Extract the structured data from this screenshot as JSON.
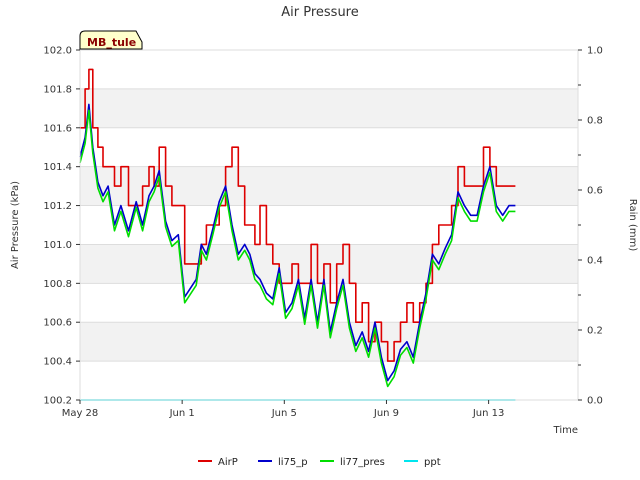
{
  "chart_data": {
    "type": "line",
    "title": "Air Pressure",
    "xlabel": "Time",
    "ylabel": "Air Pressure (kPa)",
    "y2label": "Rain (mm)",
    "site_badge": "MB_tule",
    "xlim": [
      0,
      19.5
    ],
    "ylim": [
      100.2,
      102.0
    ],
    "y2lim": [
      0.0,
      1.0
    ],
    "x_ticks": [
      {
        "x": 0,
        "label": "May 28"
      },
      {
        "x": 4,
        "label": "Jun 1"
      },
      {
        "x": 8,
        "label": "Jun 5"
      },
      {
        "x": 12,
        "label": "Jun 9"
      },
      {
        "x": 16,
        "label": "Jun 13"
      }
    ],
    "y_ticks": [
      "100.2",
      "100.4",
      "100.6",
      "100.8",
      "101.0",
      "101.2",
      "101.4",
      "101.6",
      "101.8",
      "102.0"
    ],
    "y2_ticks": [
      "0.0",
      "0.2",
      "0.4",
      "0.6",
      "0.8",
      "1.0"
    ],
    "grid": true,
    "legend_position": "bottom",
    "series": [
      {
        "name": "AirP",
        "color": "#dd0000",
        "axis": "left",
        "step": true,
        "x": [
          0.0,
          0.2,
          0.35,
          0.5,
          0.7,
          0.9,
          1.1,
          1.35,
          1.6,
          1.9,
          2.2,
          2.45,
          2.7,
          2.9,
          3.1,
          3.35,
          3.6,
          3.85,
          4.1,
          4.35,
          4.55,
          4.75,
          4.95,
          5.2,
          5.45,
          5.7,
          5.95,
          6.2,
          6.45,
          6.65,
          6.85,
          7.05,
          7.3,
          7.55,
          7.8,
          8.05,
          8.3,
          8.55,
          8.8,
          9.05,
          9.3,
          9.55,
          9.8,
          10.05,
          10.3,
          10.55,
          10.8,
          11.05,
          11.3,
          11.55,
          11.8,
          12.05,
          12.3,
          12.55,
          12.8,
          13.05,
          13.3,
          13.55,
          13.8,
          14.05,
          14.3,
          14.55,
          14.8,
          15.05,
          15.3,
          15.55,
          15.8,
          16.05,
          16.3,
          16.55,
          16.8,
          17.05
        ],
        "values": [
          101.6,
          101.8,
          101.9,
          101.6,
          101.5,
          101.4,
          101.4,
          101.3,
          101.4,
          101.2,
          101.2,
          101.3,
          101.4,
          101.3,
          101.5,
          101.3,
          101.2,
          101.2,
          100.9,
          100.9,
          100.9,
          101.0,
          101.1,
          101.1,
          101.2,
          101.4,
          101.5,
          101.3,
          101.1,
          101.1,
          101.0,
          101.2,
          101.0,
          100.9,
          100.8,
          100.8,
          100.9,
          100.8,
          100.8,
          101.0,
          100.8,
          100.9,
          100.7,
          100.9,
          101.0,
          100.8,
          100.6,
          100.7,
          100.5,
          100.6,
          100.5,
          100.4,
          100.5,
          100.6,
          100.7,
          100.6,
          100.7,
          100.8,
          101.0,
          101.1,
          101.1,
          101.2,
          101.4,
          101.3,
          101.3,
          101.3,
          101.5,
          101.4,
          101.3,
          101.3,
          101.3,
          101.3
        ]
      },
      {
        "name": "li75_p",
        "color": "#0000cc",
        "axis": "left",
        "step": false,
        "x": [
          0.0,
          0.2,
          0.35,
          0.5,
          0.7,
          0.9,
          1.1,
          1.35,
          1.6,
          1.9,
          2.2,
          2.45,
          2.7,
          2.9,
          3.1,
          3.35,
          3.6,
          3.85,
          4.1,
          4.35,
          4.55,
          4.75,
          4.95,
          5.2,
          5.45,
          5.7,
          5.95,
          6.2,
          6.45,
          6.65,
          6.85,
          7.05,
          7.3,
          7.55,
          7.8,
          8.05,
          8.3,
          8.55,
          8.8,
          9.05,
          9.3,
          9.55,
          9.8,
          10.05,
          10.3,
          10.55,
          10.8,
          11.05,
          11.3,
          11.55,
          11.8,
          12.05,
          12.3,
          12.55,
          12.8,
          13.05,
          13.3,
          13.55,
          13.8,
          14.05,
          14.3,
          14.55,
          14.8,
          15.05,
          15.3,
          15.55,
          15.8,
          16.05,
          16.3,
          16.55,
          16.8,
          17.05
        ],
        "values": [
          101.45,
          101.55,
          101.72,
          101.5,
          101.32,
          101.25,
          101.3,
          101.1,
          101.2,
          101.07,
          101.22,
          101.1,
          101.25,
          101.3,
          101.38,
          101.12,
          101.02,
          101.05,
          100.73,
          100.78,
          100.82,
          101.0,
          100.95,
          101.08,
          101.22,
          101.3,
          101.1,
          100.95,
          101.0,
          100.95,
          100.85,
          100.82,
          100.75,
          100.72,
          100.88,
          100.65,
          100.7,
          100.82,
          100.62,
          100.82,
          100.6,
          100.82,
          100.55,
          100.7,
          100.82,
          100.6,
          100.48,
          100.55,
          100.45,
          100.6,
          100.42,
          100.3,
          100.35,
          100.46,
          100.5,
          100.42,
          100.6,
          100.75,
          100.95,
          100.9,
          100.98,
          101.05,
          101.27,
          101.2,
          101.15,
          101.15,
          101.3,
          101.4,
          101.2,
          101.15,
          101.2,
          101.2
        ]
      },
      {
        "name": "li77_pres",
        "color": "#00dd00",
        "axis": "left",
        "step": false,
        "x": [
          0.0,
          0.2,
          0.35,
          0.5,
          0.7,
          0.9,
          1.1,
          1.35,
          1.6,
          1.9,
          2.2,
          2.45,
          2.7,
          2.9,
          3.1,
          3.35,
          3.6,
          3.85,
          4.1,
          4.35,
          4.55,
          4.75,
          4.95,
          5.2,
          5.45,
          5.7,
          5.95,
          6.2,
          6.45,
          6.65,
          6.85,
          7.05,
          7.3,
          7.55,
          7.8,
          8.05,
          8.3,
          8.55,
          8.8,
          9.05,
          9.3,
          9.55,
          9.8,
          10.05,
          10.3,
          10.55,
          10.8,
          11.05,
          11.3,
          11.55,
          11.8,
          12.05,
          12.3,
          12.55,
          12.8,
          13.05,
          13.3,
          13.55,
          13.8,
          14.05,
          14.3,
          14.55,
          14.8,
          15.05,
          15.3,
          15.55,
          15.8,
          16.05,
          16.3,
          16.55,
          16.8,
          17.05
        ],
        "values": [
          101.42,
          101.52,
          101.69,
          101.47,
          101.29,
          101.22,
          101.27,
          101.07,
          101.17,
          101.04,
          101.19,
          101.07,
          101.22,
          101.27,
          101.35,
          101.09,
          100.99,
          101.02,
          100.7,
          100.75,
          100.79,
          100.97,
          100.92,
          101.05,
          101.19,
          101.27,
          101.07,
          100.92,
          100.97,
          100.92,
          100.82,
          100.79,
          100.72,
          100.69,
          100.85,
          100.62,
          100.67,
          100.79,
          100.59,
          100.79,
          100.57,
          100.79,
          100.52,
          100.67,
          100.79,
          100.57,
          100.45,
          100.52,
          100.42,
          100.57,
          100.39,
          100.27,
          100.32,
          100.43,
          100.47,
          100.39,
          100.57,
          100.72,
          100.92,
          100.87,
          100.95,
          101.02,
          101.24,
          101.17,
          101.12,
          101.12,
          101.27,
          101.37,
          101.17,
          101.12,
          101.17,
          101.17
        ]
      },
      {
        "name": "ppt",
        "color": "#00e5ee",
        "axis": "right",
        "step": false,
        "x": [
          0.0,
          17.05
        ],
        "values": [
          0.0,
          0.0
        ]
      }
    ]
  }
}
